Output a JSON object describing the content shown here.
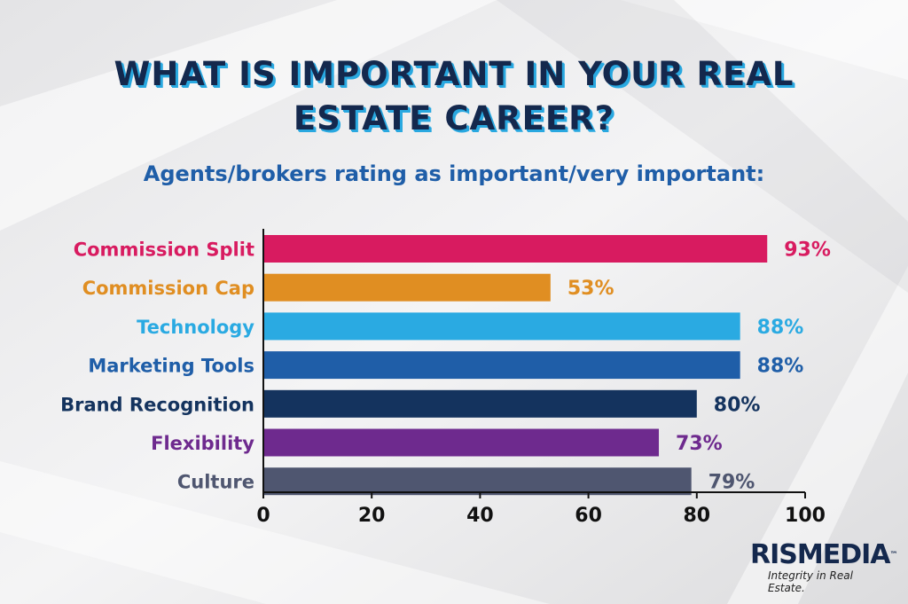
{
  "title_line1": "WHAT IS IMPORTANT IN YOUR REAL",
  "title_line2": "ESTATE CAREER?",
  "subtitle": "Agents/brokers rating as important/very important:",
  "chart_data": {
    "type": "bar",
    "orientation": "horizontal",
    "categories": [
      "Commission Split",
      "Commission Cap",
      "Technology",
      "Marketing Tools",
      "Brand Recognition",
      "Flexibility",
      "Culture"
    ],
    "values": [
      93,
      53,
      88,
      88,
      80,
      73,
      79
    ],
    "value_labels": [
      "93%",
      "53%",
      "88%",
      "88%",
      "80%",
      "73%",
      "79%"
    ],
    "colors": [
      "#d81b60",
      "#e08e22",
      "#2aaae2",
      "#1f5ea8",
      "#14335e",
      "#6e2a8e",
      "#4f5670"
    ],
    "xlim": [
      0,
      100
    ],
    "xticks": [
      "0",
      "20",
      "40",
      "60",
      "80",
      "100"
    ],
    "grid": false,
    "legend": "none"
  },
  "logo": {
    "name": "RISMEDIA",
    "trademark": "™",
    "tagline": "Integrity in Real Estate."
  },
  "colors": {
    "title": "#14284d",
    "title_shadow": "#29a8e0",
    "subtitle": "#1f5ea8"
  }
}
